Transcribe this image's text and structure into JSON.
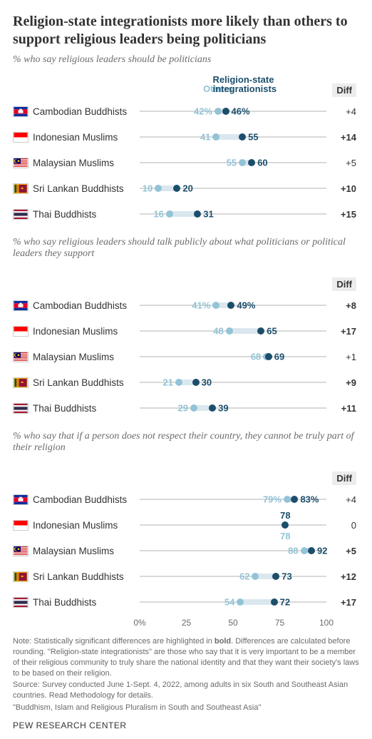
{
  "title": "Religion-state integrationists more likely than others to support religious leaders being politicians",
  "legend": {
    "others": "Others",
    "integrationists": "Religion-state integrationists",
    "diff": "Diff"
  },
  "colors": {
    "others": "#93c3d6",
    "integrationists": "#1b4e6b",
    "track": "#d9d9d9",
    "connector": "#dbe7ee",
    "background": "#ffffff"
  },
  "axis": {
    "min": 0,
    "max": 100,
    "ticks": [
      0,
      25,
      50,
      75,
      100
    ],
    "tick_labels": [
      "0%",
      "25",
      "50",
      "75",
      "100"
    ]
  },
  "flags": {
    "cambodia": {
      "bars": [
        [
          "#032ea1",
          0,
          0.25
        ],
        [
          "#e00025",
          0.25,
          0.75
        ],
        [
          "#032ea1",
          0.75,
          1
        ]
      ],
      "icon": "angkor"
    },
    "indonesia": {
      "bars": [
        [
          "#ff0000",
          0,
          0.5
        ],
        [
          "#ffffff",
          0.5,
          1
        ]
      ]
    },
    "malaysia": {
      "type": "malaysia"
    },
    "srilanka": {
      "type": "srilanka"
    },
    "thailand": {
      "bars": [
        [
          "#a51931",
          0,
          0.1667
        ],
        [
          "#f4f5f8",
          0.1667,
          0.3333
        ],
        [
          "#2d2a4a",
          0.3333,
          0.6667
        ],
        [
          "#f4f5f8",
          0.6667,
          0.8333
        ],
        [
          "#a51931",
          0.8333,
          1
        ]
      ]
    }
  },
  "sections": [
    {
      "subtitle": "% who say religious leaders should be politicians",
      "show_legend": true,
      "rows": [
        {
          "flag": "cambodia",
          "label": "Cambodian Buddhists",
          "others": 42,
          "integ": 46,
          "others_suffix": "%",
          "integ_suffix": "%",
          "diff": "+4",
          "bold": false
        },
        {
          "flag": "indonesia",
          "label": "Indonesian Muslims",
          "others": 41,
          "integ": 55,
          "diff": "+14",
          "bold": true
        },
        {
          "flag": "malaysia",
          "label": "Malaysian Muslims",
          "others": 55,
          "integ": 60,
          "diff": "+5",
          "bold": false
        },
        {
          "flag": "srilanka",
          "label": "Sri Lankan Buddhists",
          "others": 10,
          "integ": 20,
          "diff": "+10",
          "bold": true
        },
        {
          "flag": "thailand",
          "label": "Thai Buddhists",
          "others": 16,
          "integ": 31,
          "diff": "+15",
          "bold": true
        }
      ]
    },
    {
      "subtitle": "% who say religious leaders should talk publicly about what politicians or political leaders they support",
      "show_legend": false,
      "rows": [
        {
          "flag": "cambodia",
          "label": "Cambodian Buddhists",
          "others": 41,
          "integ": 49,
          "others_suffix": "%",
          "integ_suffix": "%",
          "diff": "+8",
          "bold": true
        },
        {
          "flag": "indonesia",
          "label": "Indonesian Muslims",
          "others": 48,
          "integ": 65,
          "diff": "+17",
          "bold": true
        },
        {
          "flag": "malaysia",
          "label": "Malaysian Muslims",
          "others": 68,
          "integ": 69,
          "diff": "+1",
          "bold": false
        },
        {
          "flag": "srilanka",
          "label": "Sri Lankan Buddhists",
          "others": 21,
          "integ": 30,
          "diff": "+9",
          "bold": true
        },
        {
          "flag": "thailand",
          "label": "Thai Buddhists",
          "others": 29,
          "integ": 39,
          "diff": "+11",
          "bold": true
        }
      ]
    },
    {
      "subtitle": "% who say that if a person does not respect their country, they cannot be truly part of their religion",
      "show_legend": false,
      "show_axis": true,
      "rows": [
        {
          "flag": "cambodia",
          "label": "Cambodian Buddhists",
          "others": 79,
          "integ": 83,
          "others_suffix": "%",
          "integ_suffix": "%",
          "diff": "+4",
          "bold": false
        },
        {
          "flag": "indonesia",
          "label": "Indonesian Muslims",
          "others": 78,
          "integ": 78,
          "diff": "0",
          "bold": false,
          "stacked": true
        },
        {
          "flag": "malaysia",
          "label": "Malaysian Muslims",
          "others": 88,
          "integ": 92,
          "diff": "+5",
          "bold": true
        },
        {
          "flag": "srilanka",
          "label": "Sri Lankan Buddhists",
          "others": 62,
          "integ": 73,
          "diff": "+12",
          "bold": true
        },
        {
          "flag": "thailand",
          "label": "Thai Buddhists",
          "others": 54,
          "integ": 72,
          "diff": "+17",
          "bold": true
        }
      ]
    }
  ],
  "note_label": "Note: Statistically significant differences are highlighted in ",
  "note_bold": "bold",
  "note_rest": ". Differences are calculated before rounding. \"Religion-state integrationists\" are those who say that it is very important to be a member of their religious community to truly share the national identity and that they want their society's laws to be based on their religion.",
  "source": "Source: Survey conducted June 1-Sept. 4, 2022, among adults in six South and Southeast Asian countries. Read Methodology for details.",
  "report": "\"Buddhism, Islam and Religious Pluralism in South and Southeast Asia\"",
  "footer": "PEW RESEARCH CENTER"
}
